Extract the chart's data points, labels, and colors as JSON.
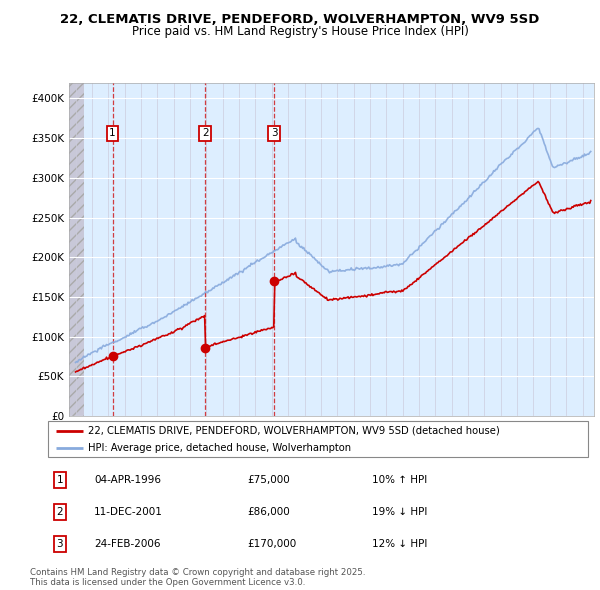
{
  "title": "22, CLEMATIS DRIVE, PENDEFORD, WOLVERHAMPTON, WV9 5SD",
  "subtitle": "Price paid vs. HM Land Registry's House Price Index (HPI)",
  "ylim": [
    0,
    420000
  ],
  "yticks": [
    0,
    50000,
    100000,
    150000,
    200000,
    250000,
    300000,
    350000,
    400000
  ],
  "ytick_labels": [
    "£0",
    "£50K",
    "£100K",
    "£150K",
    "£200K",
    "£250K",
    "£300K",
    "£350K",
    "£400K"
  ],
  "xlim_start": 1993.6,
  "xlim_end": 2025.7,
  "transactions": [
    {
      "date_num": 1996.26,
      "price": 75000,
      "label": "1"
    },
    {
      "date_num": 2001.94,
      "price": 86000,
      "label": "2"
    },
    {
      "date_num": 2006.15,
      "price": 170000,
      "label": "3"
    }
  ],
  "transaction_table": [
    {
      "num": "1",
      "date": "04-APR-1996",
      "price": "£75,000",
      "hpi": "10% ↑ HPI"
    },
    {
      "num": "2",
      "date": "11-DEC-2001",
      "price": "£86,000",
      "hpi": "19% ↓ HPI"
    },
    {
      "num": "3",
      "date": "24-FEB-2006",
      "price": "£170,000",
      "hpi": "12% ↓ HPI"
    }
  ],
  "legend_entries": [
    "22, CLEMATIS DRIVE, PENDEFORD, WOLVERHAMPTON, WV9 5SD (detached house)",
    "HPI: Average price, detached house, Wolverhampton"
  ],
  "price_color": "#cc0000",
  "hpi_color": "#88aadd",
  "background_color": "#ddeeff",
  "footer": "Contains HM Land Registry data © Crown copyright and database right 2025.\nThis data is licensed under the Open Government Licence v3.0."
}
